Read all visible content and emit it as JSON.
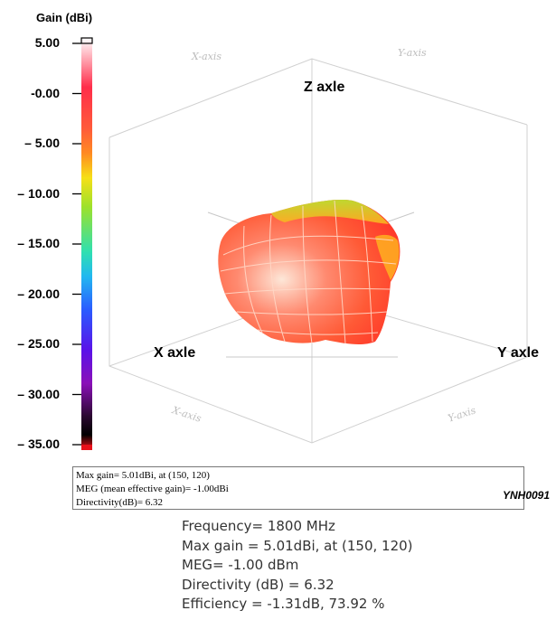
{
  "legend": {
    "title": "Gain (dBi)",
    "ticks": [
      {
        "label": "5.00",
        "value": 5
      },
      {
        "label": "-0.00",
        "value": 0
      },
      {
        "label": "– 5.00",
        "value": -5
      },
      {
        "label": "– 10.00",
        "value": -10
      },
      {
        "label": "– 15.00",
        "value": -15
      },
      {
        "label": "– 20.00",
        "value": -20
      },
      {
        "label": "– 25.00",
        "value": -25
      },
      {
        "label": "– 30.00",
        "value": -30
      },
      {
        "label": "– 35.00",
        "value": -35
      }
    ],
    "range": [
      -35,
      5
    ],
    "colorscale": [
      "#ffffff",
      "#ff2d4a",
      "#ff5a3a",
      "#ff8a22",
      "#f6e018",
      "#9ee12a",
      "#2fe0b0",
      "#22b8f0",
      "#2a5cff",
      "#5a12e8",
      "#8a10b8",
      "#2a0830",
      "#000000",
      "#e8111a"
    ]
  },
  "plot": {
    "z_label": "Z axle",
    "x_label": "X axle",
    "y_label": "Y axle",
    "faint_top_left": "X-axis",
    "faint_top_right": "Y-axis",
    "faint_bottom_left": "X-axis",
    "faint_bottom_right": "Y-axis",
    "pattern_colors": {
      "main": "#ff5a36",
      "highlight": "#fde7d8",
      "edge": "#ffb020",
      "top_green": "#b8e830",
      "mesh": "#ffd9c8"
    }
  },
  "info_box": {
    "line1": "Max gain= 5.01dBi, at (150, 120)",
    "line2": "MEG (mean effective gain)= -1.00dBi",
    "line3": "Directivity(dB)= 6.32"
  },
  "image_code": "YNH0091",
  "caption": {
    "frequency": "Frequency= 1800 MHz",
    "max_gain": "Max gain = 5.01dBi, at (150, 120)",
    "meg": "MEG= -1.00 dBm",
    "directivity": "Directivity (dB) = 6.32",
    "efficiency": "Efficiency = -1.31dB, 73.92 %"
  }
}
